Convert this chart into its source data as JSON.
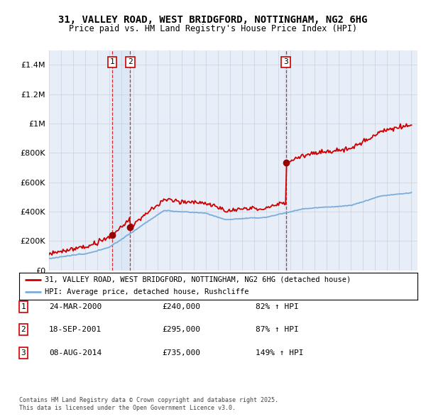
{
  "title": "31, VALLEY ROAD, WEST BRIDGFORD, NOTTINGHAM, NG2 6HG",
  "subtitle": "Price paid vs. HM Land Registry's House Price Index (HPI)",
  "legend_property": "31, VALLEY ROAD, WEST BRIDGFORD, NOTTINGHAM, NG2 6HG (detached house)",
  "legend_hpi": "HPI: Average price, detached house, Rushcliffe",
  "sales": [
    {
      "num": 1,
      "date_year": 2000.23,
      "price": 240000,
      "label": "24-MAR-2000",
      "pct": "82%",
      "arrow": "↑"
    },
    {
      "num": 2,
      "date_year": 2001.72,
      "price": 295000,
      "label": "18-SEP-2001",
      "pct": "87%",
      "arrow": "↑"
    },
    {
      "num": 3,
      "date_year": 2014.6,
      "price": 735000,
      "label": "08-AUG-2014",
      "pct": "149%",
      "arrow": "↑"
    }
  ],
  "footnote1": "Contains HM Land Registry data © Crown copyright and database right 2025.",
  "footnote2": "This data is licensed under the Open Government Licence v3.0.",
  "property_color": "#cc0000",
  "hpi_color": "#7aaddb",
  "shade_color": "#dce8f5",
  "background_color": "#e8eef8",
  "grid_color": "#c8d0e0",
  "ylim": [
    0,
    1500000
  ],
  "yticks": [
    0,
    200000,
    400000,
    600000,
    800000,
    1000000,
    1200000,
    1400000
  ],
  "xmin": 1995.0,
  "xmax": 2025.5
}
